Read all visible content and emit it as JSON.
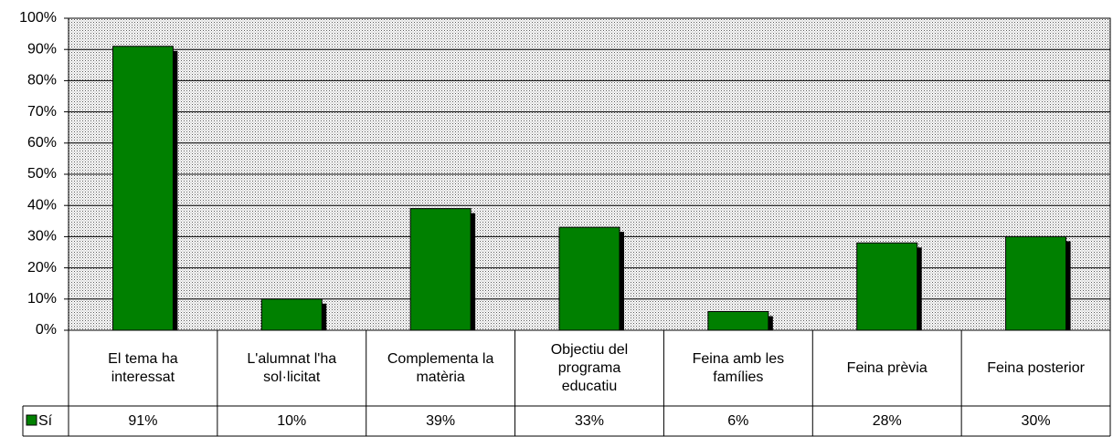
{
  "chart_data": {
    "type": "bar",
    "categories": [
      "El tema ha\ninteressat",
      "L'alumnat l'ha\nsol·licitat",
      "Complementa la\nmatèria",
      "Objectiu del\nprograma\neducatiu",
      "Feina amb les\nfamílies",
      "Feina prèvia",
      "Feina posterior"
    ],
    "series": [
      {
        "name": "Sí",
        "color": "#008000",
        "values": [
          91,
          10,
          39,
          33,
          6,
          28,
          30
        ],
        "value_labels": [
          "91%",
          "10%",
          "39%",
          "33%",
          "6%",
          "28%",
          "30%"
        ]
      }
    ],
    "ylim": [
      0,
      100
    ],
    "yticks": [
      {
        "value": 0,
        "label": "0%"
      },
      {
        "value": 10,
        "label": "10%"
      },
      {
        "value": 20,
        "label": "20%"
      },
      {
        "value": 30,
        "label": "30%"
      },
      {
        "value": 40,
        "label": "40%"
      },
      {
        "value": 50,
        "label": "50%"
      },
      {
        "value": 60,
        "label": "60%"
      },
      {
        "value": 70,
        "label": "70%"
      },
      {
        "value": 80,
        "label": "80%"
      },
      {
        "value": 90,
        "label": "90%"
      },
      {
        "value": 100,
        "label": "100%"
      }
    ],
    "grid": true
  }
}
